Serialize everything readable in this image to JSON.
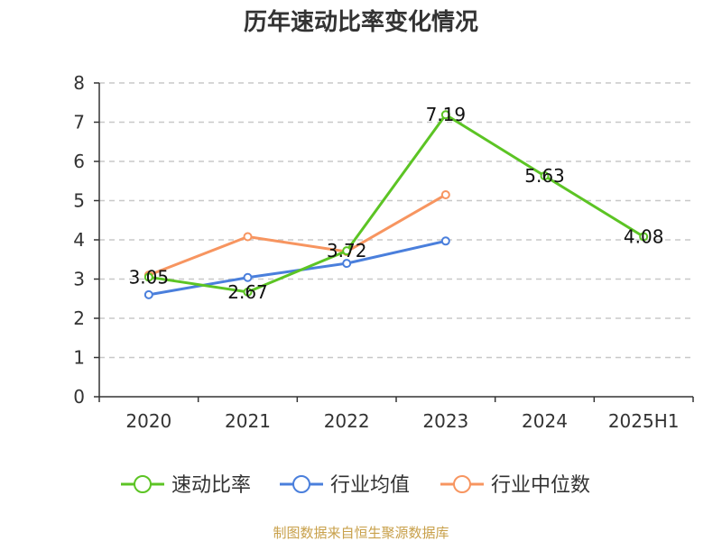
{
  "chart_data": {
    "type": "line",
    "title": "历年速动比率变化情况",
    "categories": [
      "2020",
      "2021",
      "2022",
      "2023",
      "2024",
      "2025H1"
    ],
    "ylim": [
      0,
      8
    ],
    "yticks": [
      "0",
      "1",
      "2",
      "3",
      "4",
      "5",
      "6",
      "7",
      "8"
    ],
    "grid": true,
    "legend_position": "bottom",
    "series": [
      {
        "name": "速动比率",
        "color": "#5cc424",
        "values": [
          3.05,
          2.67,
          3.72,
          7.19,
          5.63,
          4.08
        ],
        "labels": [
          "3.05",
          "2.67",
          "3.72",
          "7.19",
          "5.63",
          "4.08"
        ]
      },
      {
        "name": "行业均值",
        "color": "#4a7fdc",
        "values": [
          2.6,
          3.04,
          3.4,
          3.97,
          null,
          null
        ]
      },
      {
        "name": "行业中位数",
        "color": "#f79560",
        "values": [
          3.1,
          4.08,
          3.7,
          5.15,
          null,
          null
        ]
      }
    ],
    "source": "制图数据来自恒生聚源数据库"
  }
}
